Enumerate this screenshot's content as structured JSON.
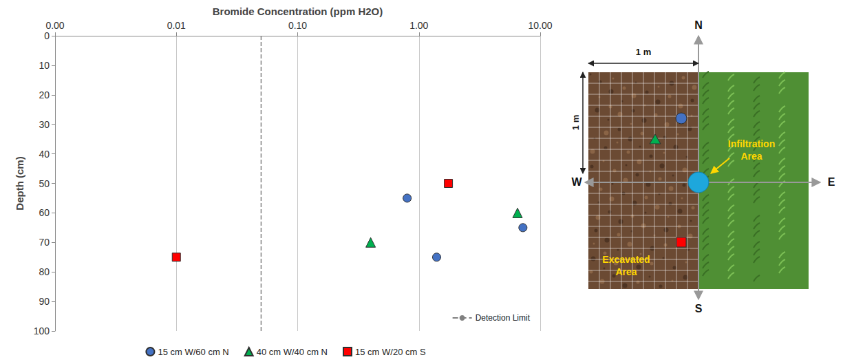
{
  "chart_data": {
    "type": "scatter",
    "xlabel": "Bromide Concentration (ppm H2O)",
    "ylabel": "Depth (cm)",
    "log": "x",
    "grid": true,
    "legend": "bottom",
    "xlim": [
      0.001,
      10
    ],
    "xticks": [
      {
        "value": 0.001,
        "label": "0.00"
      },
      {
        "value": 0.01,
        "label": "0.01"
      },
      {
        "value": 0.1,
        "label": "0.10"
      },
      {
        "value": 1,
        "label": "1.00"
      },
      {
        "value": 10,
        "label": "10.00"
      }
    ],
    "ylim": [
      100,
      0
    ],
    "yticks": [
      0,
      10,
      20,
      30,
      40,
      50,
      60,
      70,
      80,
      90,
      100
    ],
    "series": [
      {
        "name": "15 cm W/60 cm N",
        "color": "#4472c4",
        "marker": "circle",
        "x": [
          0.8,
          7.2,
          1.4
        ],
        "values": [
          55,
          65,
          75
        ]
      },
      {
        "name": "40 cm W/40 cm N",
        "color": "#00b050",
        "marker": "triangle",
        "x": [
          6.5,
          0.4
        ],
        "values": [
          60,
          70
        ]
      },
      {
        "name": "15 cm W/20 cm S",
        "color": "#ff0000",
        "marker": "square",
        "x": [
          1.75,
          0.01
        ],
        "values": [
          50,
          75
        ]
      }
    ],
    "reference_lines": [
      {
        "name": "Detection Limit",
        "x": 0.05,
        "color": "#808080",
        "line_style": "dashed"
      }
    ]
  },
  "diagram": {
    "scale_labels": {
      "width": "1 m",
      "height": "1 m"
    },
    "compass": {
      "north": "N",
      "south": "S",
      "west": "W",
      "east": "E"
    },
    "labels": {
      "infiltration": "Infiltration Area",
      "excavated": "Excavated Area"
    }
  }
}
